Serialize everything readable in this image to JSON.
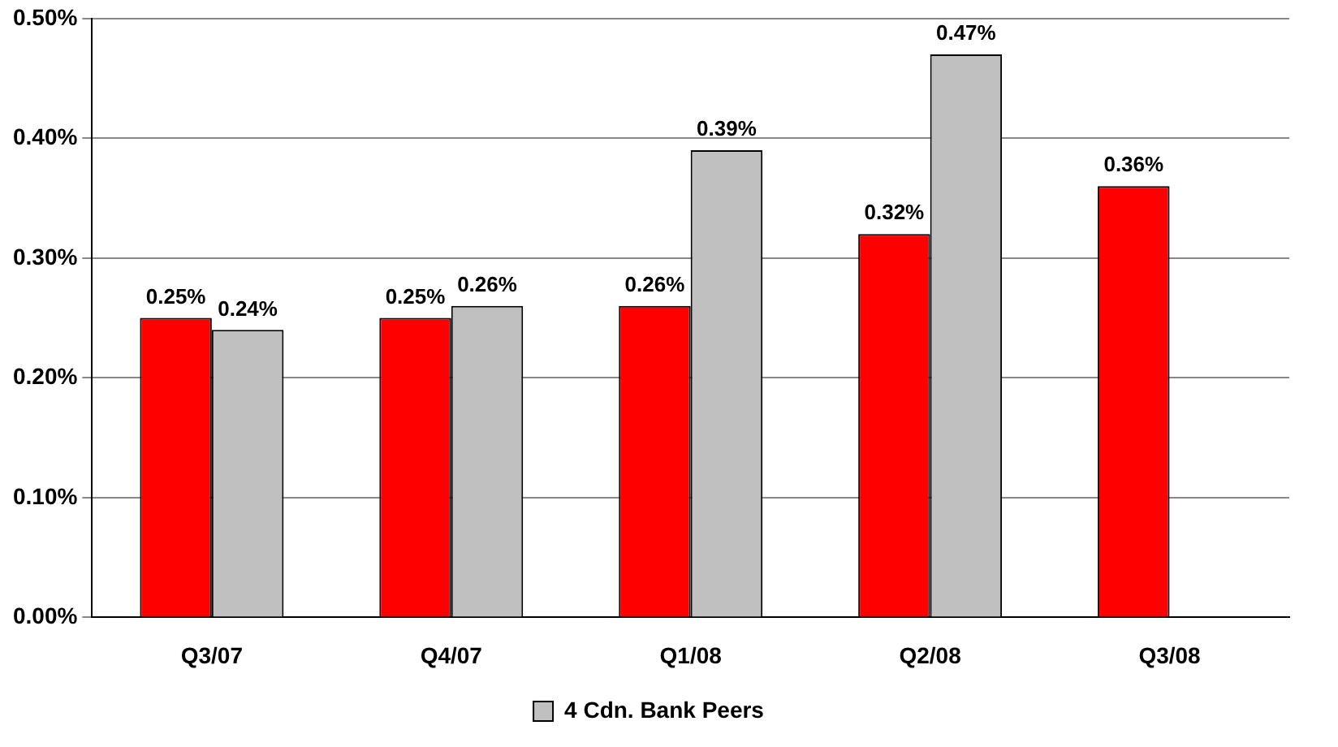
{
  "chart_data": {
    "type": "bar",
    "categories": [
      "Q3/07",
      "Q4/07",
      "Q1/08",
      "Q2/08",
      "Q3/08"
    ],
    "series": [
      {
        "color": "#ff0000",
        "values": [
          0.25,
          0.25,
          0.26,
          0.32,
          0.36
        ],
        "value_labels": [
          "0.25%",
          "0.25%",
          "0.26%",
          "0.32%",
          "0.36%"
        ]
      },
      {
        "name": "4 Cdn. Bank Peers",
        "color": "#c0c0c0",
        "values": [
          0.24,
          0.26,
          0.39,
          0.47,
          null
        ],
        "value_labels": [
          "0.24%",
          "0.26%",
          "0.39%",
          "0.47%",
          null
        ]
      }
    ],
    "ylim": [
      0,
      0.5
    ],
    "yticks": [
      {
        "value": 0,
        "label": "0.00%"
      },
      {
        "value": 0.1,
        "label": "0.10%"
      },
      {
        "value": 0.2,
        "label": "0.20%"
      },
      {
        "value": 0.3,
        "label": "0.30%"
      },
      {
        "value": 0.4,
        "label": "0.40%"
      },
      {
        "value": 0.5,
        "label": "0.50%"
      }
    ],
    "grid": "y",
    "legend": "bottom"
  }
}
